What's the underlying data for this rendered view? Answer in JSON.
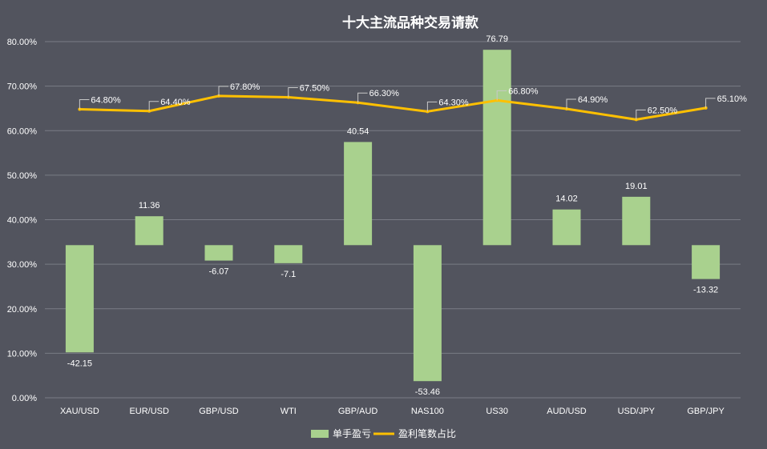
{
  "chart_data": {
    "type": "bar+line",
    "title": "十大主流品种交易请款",
    "categories": [
      "XAU/USD",
      "EUR/USD",
      "GBP/USD",
      "WTI",
      "GBP/AUD",
      "NAS100",
      "US30",
      "AUD/USD",
      "USD/JPY",
      "GBP/JPY"
    ],
    "left_axis": {
      "ticks": [
        "0.00%",
        "10.00%",
        "20.00%",
        "30.00%",
        "40.00%",
        "50.00%",
        "60.00%",
        "70.00%",
        "80.00%"
      ],
      "range": [
        0,
        80
      ]
    },
    "right_axis": {
      "range": [
        -60,
        80
      ],
      "labels_visible": false
    },
    "series": [
      {
        "name": "单手盈亏",
        "type": "bar",
        "axis": "right",
        "color": "#a9d18e",
        "values": [
          -42.15,
          11.36,
          -6.07,
          -7.1,
          40.54,
          -53.46,
          76.79,
          14.02,
          19.01,
          -13.32
        ],
        "labels": [
          "-42.15",
          "11.36",
          "-6.07",
          "-7.1",
          "40.54",
          "-53.46",
          "76.79",
          "14.02",
          "19.01",
          "-13.32"
        ]
      },
      {
        "name": "盈利笔数占比",
        "type": "line",
        "axis": "left",
        "color": "#ffc000",
        "values": [
          64.8,
          64.4,
          67.8,
          67.5,
          66.3,
          64.3,
          66.8,
          64.9,
          62.5,
          65.1
        ],
        "labels": [
          "64.80%",
          "64.40%",
          "67.80%",
          "67.50%",
          "66.30%",
          "64.30%",
          "66.80%",
          "64.90%",
          "62.50%",
          "65.10%"
        ]
      }
    ],
    "grid": true,
    "legend_position": "bottom"
  }
}
